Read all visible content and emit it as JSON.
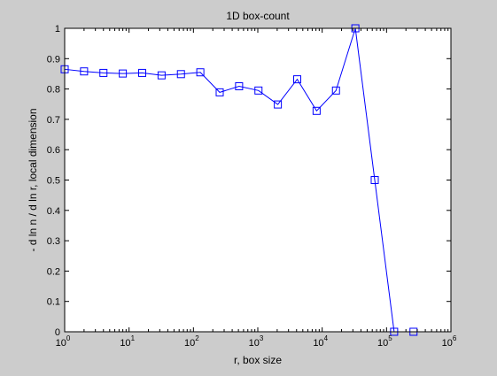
{
  "figure": {
    "background": "#cccccc"
  },
  "chart_data": {
    "type": "line",
    "title": "1D box-count",
    "xlabel": "r, box size",
    "ylabel": "- d ln n / d ln r, local dimension",
    "xscale": "log",
    "xlim": [
      1,
      1000000
    ],
    "ylim": [
      0,
      1
    ],
    "x_ticks": [
      1,
      10,
      100,
      1000,
      10000,
      100000,
      1000000
    ],
    "x_tick_labels": [
      {
        "base": "10",
        "exp": "0"
      },
      {
        "base": "10",
        "exp": "1"
      },
      {
        "base": "10",
        "exp": "2"
      },
      {
        "base": "10",
        "exp": "3"
      },
      {
        "base": "10",
        "exp": "4"
      },
      {
        "base": "10",
        "exp": "5"
      },
      {
        "base": "10",
        "exp": "6"
      }
    ],
    "y_ticks": [
      0,
      0.1,
      0.2,
      0.3,
      0.4,
      0.5,
      0.6,
      0.7,
      0.8,
      0.9,
      1
    ],
    "y_tick_labels": [
      "0",
      "0.1",
      "0.2",
      "0.3",
      "0.4",
      "0.5",
      "0.6",
      "0.7",
      "0.8",
      "0.9",
      "1"
    ],
    "grid": false,
    "marker": "square",
    "line_color": "#0000ff",
    "series": [
      {
        "x": [
          1,
          2,
          4,
          8,
          16,
          32,
          64,
          128,
          256,
          512,
          1024,
          2048,
          4096,
          8192,
          16384,
          32768,
          65536,
          131072,
          262144
        ],
        "y": [
          0.865,
          0.858,
          0.853,
          0.851,
          0.853,
          0.845,
          0.849,
          0.855,
          0.789,
          0.809,
          0.795,
          0.749,
          0.832,
          0.728,
          0.795,
          1.0,
          0.5,
          0.0,
          0.0
        ]
      }
    ]
  }
}
